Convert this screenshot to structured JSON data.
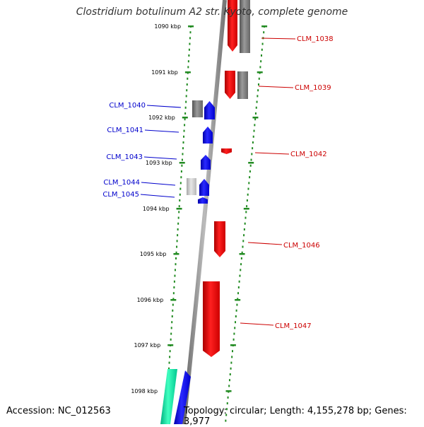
{
  "title": "Clostridium botulinum A2 str. Kyoto, complete genome",
  "footer": {
    "accession": "Accession: NC_012563",
    "summary": "Topology: circular; Length: 4,155,278 bp; Genes: 3,977"
  },
  "colors": {
    "forward": "#ff0000",
    "reverse": "#0000ff",
    "label_forward": "#cc0000",
    "label_reverse": "#0000cc",
    "gray_gene": "#808080",
    "light_gray_gene": "#c8c8c8",
    "teal_gene": "#00e8a0",
    "ruler": "#228B22",
    "backbone": "#888888"
  },
  "ruler_labels": [
    "1090 kbp",
    "1091 kbp",
    "1092 kbp",
    "1093 kbp",
    "1094 kbp",
    "1095 kbp",
    "1096 kbp",
    "1097 kbp",
    "1098 kbp"
  ],
  "gene_labels": [
    {
      "id": "CLM_1038",
      "strand": "forward"
    },
    {
      "id": "CLM_1039",
      "strand": "forward"
    },
    {
      "id": "CLM_1040",
      "strand": "reverse"
    },
    {
      "id": "CLM_1041",
      "strand": "reverse"
    },
    {
      "id": "CLM_1042",
      "strand": "forward"
    },
    {
      "id": "CLM_1043",
      "strand": "reverse"
    },
    {
      "id": "CLM_1044",
      "strand": "reverse"
    },
    {
      "id": "CLM_1045",
      "strand": "reverse"
    },
    {
      "id": "CLM_1046",
      "strand": "forward"
    },
    {
      "id": "CLM_1047",
      "strand": "forward"
    }
  ]
}
